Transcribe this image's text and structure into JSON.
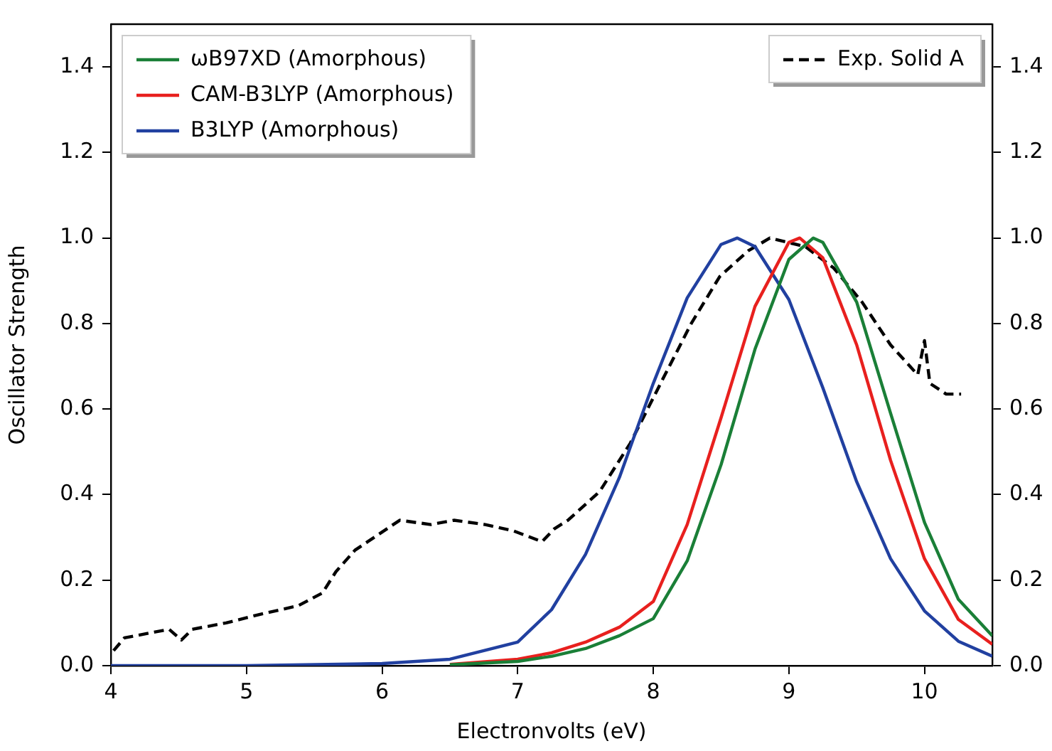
{
  "chart_data": {
    "type": "line",
    "xlabel": "Electronvolts (eV)",
    "ylabel": "Oscillator Strength",
    "xlim": [
      4,
      10.5
    ],
    "xticks": [
      4,
      5,
      6,
      7,
      8,
      9,
      10
    ],
    "ylim": [
      0,
      1.5
    ],
    "yticks": [
      {
        "value": 0,
        "label": "0.0"
      },
      0.2,
      0.4,
      0.6,
      0.8,
      {
        "value": 1,
        "label": "1.0"
      },
      1.2,
      1.4
    ],
    "y2lim": [
      0,
      1.5
    ],
    "y2ticks": [
      {
        "value": 0,
        "label": "0.0"
      },
      0.2,
      0.4,
      0.6,
      0.8,
      {
        "value": 1,
        "label": "1.0"
      },
      1.2,
      1.4
    ],
    "legend": "top left",
    "marker": "none",
    "grid": false,
    "series": [
      {
        "name": "ωB97XD (Amorphous)",
        "color": "#1a7f37",
        "line_style": "solid",
        "x": [
          6.5,
          7,
          7.25,
          7.5,
          7.75,
          8,
          8.25,
          8.5,
          8.75,
          9,
          9.18,
          9.25,
          9.5,
          9.75,
          10,
          10.25,
          10.5
        ],
        "values": [
          0.002,
          0.01,
          0.022,
          0.04,
          0.07,
          0.11,
          0.245,
          0.47,
          0.74,
          0.95,
          1.0,
          0.99,
          0.85,
          0.59,
          0.335,
          0.155,
          0.07
        ]
      },
      {
        "name": "CAM-B3LYP (Amorphous)",
        "color": "#e8201e",
        "line_style": "solid",
        "x": [
          6.5,
          7,
          7.25,
          7.5,
          7.75,
          8,
          8.25,
          8.5,
          8.75,
          9,
          9.08,
          9.25,
          9.5,
          9.75,
          10,
          10.25,
          10.5
        ],
        "values": [
          0.003,
          0.015,
          0.03,
          0.055,
          0.09,
          0.15,
          0.33,
          0.58,
          0.84,
          0.99,
          1.0,
          0.954,
          0.75,
          0.48,
          0.25,
          0.108,
          0.05
        ]
      },
      {
        "name": "B3LYP (Amorphous)",
        "color": "#2140a0",
        "line_style": "solid",
        "x": [
          4,
          5,
          6,
          6.5,
          7,
          7.25,
          7.5,
          7.75,
          8,
          8.25,
          8.5,
          8.62,
          8.75,
          9,
          9.25,
          9.5,
          9.75,
          10,
          10.25,
          10.5
        ],
        "values": [
          0,
          0,
          0.005,
          0.015,
          0.055,
          0.131,
          0.26,
          0.44,
          0.66,
          0.86,
          0.985,
          1.0,
          0.98,
          0.856,
          0.65,
          0.43,
          0.25,
          0.128,
          0.057,
          0.022
        ]
      },
      {
        "name": "Exp. Solid A",
        "color": "#000000",
        "line_style": "dashed",
        "x": [
          4.02,
          4.1,
          4.43,
          4.52,
          4.6,
          4.85,
          5.1,
          5.38,
          5.56,
          5.66,
          5.8,
          6.13,
          6.36,
          6.53,
          6.76,
          6.97,
          7.18,
          7.27,
          7.37,
          7.58,
          7.61,
          7.83,
          8.07,
          8.28,
          8.49,
          8.7,
          8.86,
          9.12,
          9.33,
          9.54,
          9.75,
          9.95,
          10.0,
          10.04,
          10.16,
          10.27
        ],
        "values": [
          0.035,
          0.065,
          0.085,
          0.06,
          0.085,
          0.1,
          0.12,
          0.14,
          0.17,
          0.22,
          0.27,
          0.34,
          0.33,
          0.34,
          0.33,
          0.315,
          0.29,
          0.32,
          0.34,
          0.4,
          0.41,
          0.52,
          0.67,
          0.8,
          0.91,
          0.97,
          1.0,
          0.98,
          0.93,
          0.85,
          0.75,
          0.68,
          0.76,
          0.66,
          0.635,
          0.635
        ]
      }
    ]
  }
}
